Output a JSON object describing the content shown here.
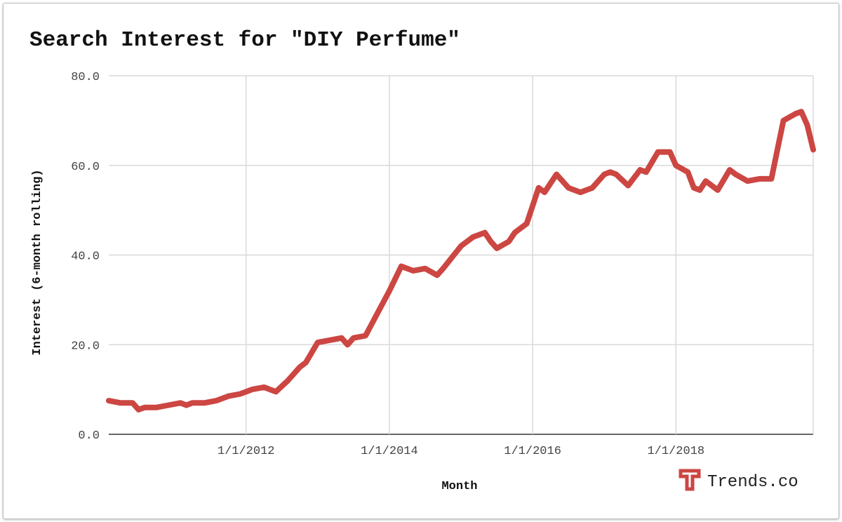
{
  "chart_data": {
    "type": "line",
    "title": "Search Interest for \"DIY Perfume\"",
    "xlabel": "Month",
    "ylabel": "Interest (6-month rolling)",
    "ylim": [
      0,
      80
    ],
    "xlim": [
      "2010-02",
      "2019-12"
    ],
    "y_ticks": [
      "0.0",
      "20.0",
      "40.0",
      "60.0",
      "80.0"
    ],
    "y_tick_values": [
      0,
      20,
      40,
      60,
      80
    ],
    "x_ticks": [
      "1/1/2012",
      "1/1/2014",
      "1/1/2016",
      "1/1/2018"
    ],
    "x_tick_dates": [
      "2012-01",
      "2014-01",
      "2016-01",
      "2018-01"
    ],
    "grid": true,
    "line_color": "#cc4642",
    "series": [
      {
        "x": [
          "2010-02",
          "2010-04",
          "2010-06",
          "2010-07",
          "2010-08",
          "2010-10",
          "2010-12",
          "2011-02",
          "2011-03",
          "2011-04",
          "2011-06",
          "2011-08",
          "2011-10",
          "2011-12",
          "2012-02",
          "2012-04",
          "2012-05",
          "2012-06",
          "2012-08",
          "2012-10",
          "2012-11",
          "2013-01",
          "2013-03",
          "2013-05",
          "2013-06",
          "2013-07",
          "2013-09",
          "2013-11",
          "2014-01",
          "2014-03",
          "2014-04",
          "2014-05",
          "2014-07",
          "2014-09",
          "2014-10",
          "2015-01",
          "2015-03",
          "2015-05",
          "2015-06",
          "2015-07",
          "2015-09",
          "2015-10",
          "2015-12",
          "2016-02",
          "2016-03",
          "2016-05",
          "2016-07",
          "2016-09",
          "2016-11",
          "2017-01",
          "2017-02",
          "2017-03",
          "2017-05",
          "2017-07",
          "2017-08",
          "2017-10",
          "2017-12",
          "2018-01",
          "2018-03",
          "2018-04",
          "2018-05",
          "2018-06",
          "2018-08",
          "2018-10",
          "2018-11",
          "2019-01",
          "2019-03",
          "2019-05",
          "2019-06",
          "2019-07",
          "2019-09",
          "2019-10",
          "2019-11",
          "2019-12"
        ],
        "values": [
          7.5,
          7,
          7,
          5.5,
          6,
          6,
          6.5,
          7,
          6.5,
          7,
          7,
          7.5,
          8.5,
          9,
          10,
          10.5,
          10,
          9.5,
          12,
          15,
          16,
          20.5,
          21,
          21.5,
          20,
          21.5,
          22,
          27,
          32,
          37.5,
          37,
          36.5,
          37,
          35.5,
          37,
          42,
          44,
          45,
          43,
          41.5,
          43,
          45,
          47,
          55,
          54,
          58,
          55,
          54,
          55,
          58,
          58.5,
          58,
          55.5,
          59,
          58.5,
          63,
          63,
          60,
          58.5,
          55,
          54.5,
          56.5,
          54.5,
          59,
          58,
          56.5,
          57,
          57,
          63.5,
          70,
          71.5,
          72,
          69,
          63.5
        ]
      }
    ]
  },
  "branding": {
    "logo_letter": "T",
    "name": "Trends.co",
    "color": "#cc4642"
  }
}
